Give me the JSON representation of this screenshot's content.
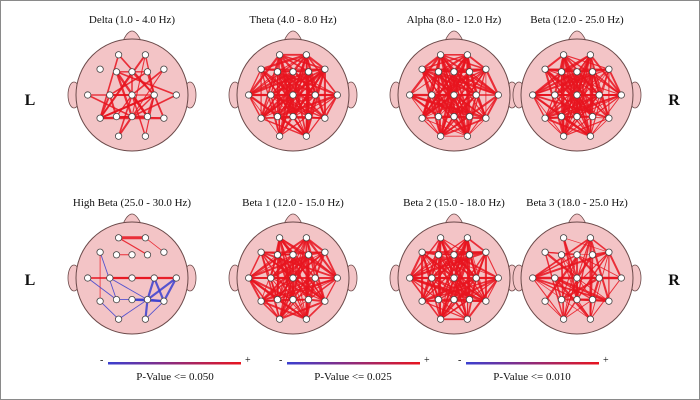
{
  "side_labels": {
    "left": "L",
    "right": "R"
  },
  "panels": [
    {
      "title": "Delta (1.0 - 4.0 Hz)",
      "density": "sparse-red"
    },
    {
      "title": "Theta (4.0 - 8.0 Hz)",
      "density": "dense-red"
    },
    {
      "title": "Alpha (8.0 - 12.0 Hz)",
      "density": "dense-red"
    },
    {
      "title": "Beta (12.0 - 25.0 Hz)",
      "density": "dense-red"
    },
    {
      "title": "High Beta (25.0 - 30.0 Hz)",
      "density": "mixed-blue-red"
    },
    {
      "title": "Beta 1 (12.0 - 15.0 Hz)",
      "density": "dense-red"
    },
    {
      "title": "Beta 2 (15.0 - 18.0 Hz)",
      "density": "dense-red"
    },
    {
      "title": "Beta 3 (18.0 - 25.0 Hz)",
      "density": "medium-red"
    }
  ],
  "legends": [
    {
      "label": "P-Value <= 0.050",
      "minus": "-",
      "plus": "+"
    },
    {
      "label": "P-Value <= 0.025",
      "minus": "-",
      "plus": "+"
    },
    {
      "label": "P-Value <= 0.010",
      "minus": "-",
      "plus": "+"
    }
  ],
  "colors": {
    "head_fill": "#f3c4c6",
    "head_stroke": "#6b4a4a",
    "positive": "#e8141e",
    "negative": "#3a3fd0",
    "electrode_fill": "#ffffff",
    "electrode_stroke": "#444444"
  }
}
